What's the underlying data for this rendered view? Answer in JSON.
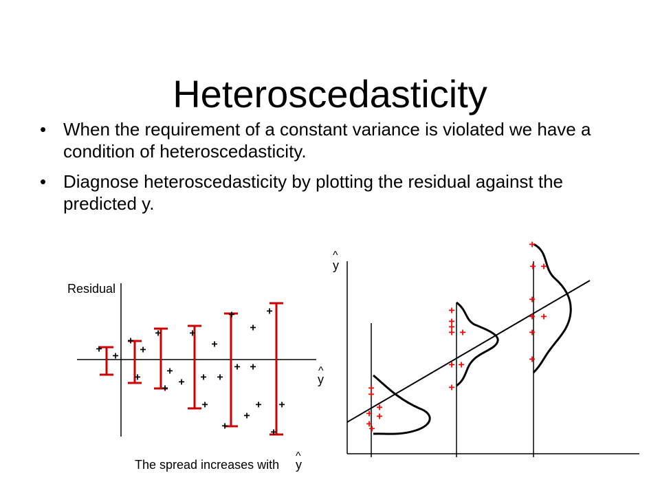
{
  "slide": {
    "title": "Heteroscedasticity",
    "bullets": [
      {
        "marker": "•",
        "text": "When the requirement of a constant variance is violated we have a condition of heteroscedasticity."
      },
      {
        "marker": "•",
        "text": "Diagnose heteroscedasticity by plotting the residual against the predicted y."
      }
    ]
  },
  "residual_plot": {
    "ylabel": "Residual",
    "xlabel": "y",
    "xlabel_hat": "^",
    "caption": "The spread increases with",
    "caption_var": "y",
    "caption_hat": "^",
    "point_symbol": "+",
    "colors": {
      "axis": "#000000",
      "points": "#000000",
      "range_bars": "#cc0000"
    }
  },
  "regression_plot": {
    "ylabel": "y",
    "ylabel_hat": "^",
    "point_symbol": "+",
    "colors": {
      "axis": "#000000",
      "line": "#000000",
      "points": "#ff0000",
      "curves": "#000000"
    }
  }
}
